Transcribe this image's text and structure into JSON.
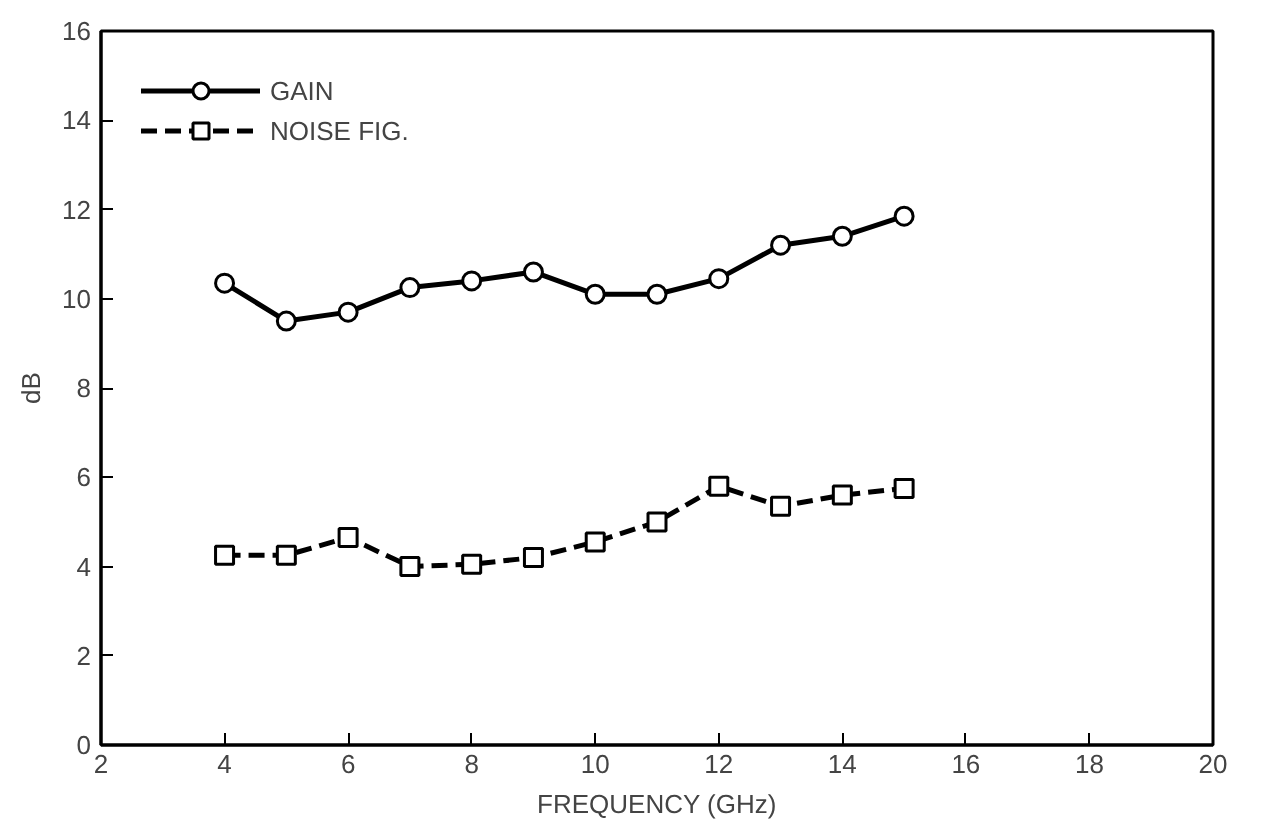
{
  "chart_data": {
    "type": "line",
    "xlabel": "FREQUENCY (GHz)",
    "ylabel": "dB",
    "x": [
      4,
      5,
      6,
      7,
      8,
      9,
      10,
      11,
      12,
      13,
      14,
      15
    ],
    "series": [
      {
        "name": "GAIN",
        "color": "#000000",
        "marker": "circle",
        "line_style": "solid",
        "values": [
          10.35,
          9.5,
          9.7,
          10.25,
          10.4,
          10.6,
          10.1,
          10.1,
          10.45,
          11.2,
          11.4,
          11.85
        ]
      },
      {
        "name": "NOISE FIG.",
        "color": "#000000",
        "marker": "square",
        "line_style": "dashed",
        "values": [
          4.25,
          4.25,
          4.65,
          4.0,
          4.05,
          4.2,
          4.55,
          5.0,
          5.8,
          5.35,
          5.6,
          5.75
        ]
      }
    ],
    "xlim": [
      2,
      20
    ],
    "ylim": [
      0,
      16
    ],
    "xticks": [
      2,
      4,
      6,
      8,
      10,
      12,
      14,
      16,
      18,
      20
    ],
    "yticks": [
      0,
      2,
      4,
      6,
      8,
      10,
      12,
      14,
      16
    ],
    "grid": false,
    "legend": "top left"
  }
}
